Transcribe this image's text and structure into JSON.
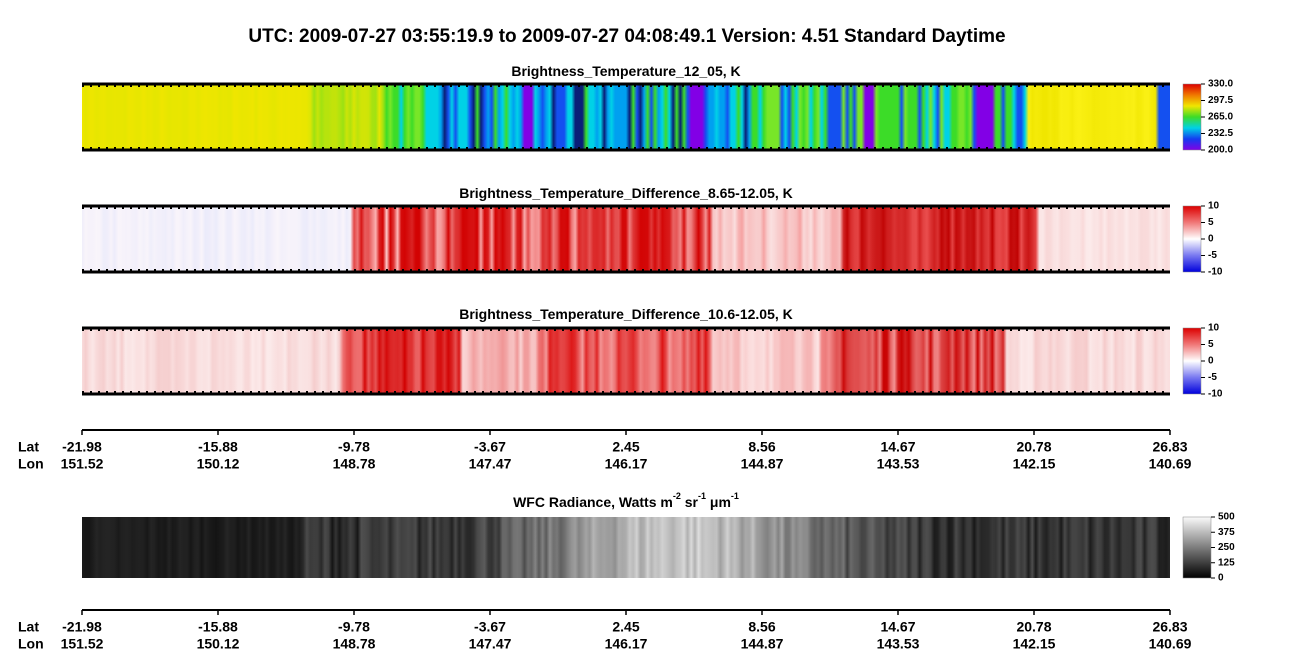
{
  "header": {
    "title": "UTC:  2009-07-27   03:55:19.9  to  2009-07-27   04:08:49.1    Version: 4.51  Standard Daytime"
  },
  "panels": [
    {
      "title": [
        "Brightness_Temperature_12_05, K"
      ],
      "colorbar": [
        "330.0",
        "297.5",
        "265.0",
        "232.5",
        "200.0"
      ]
    },
    {
      "title": [
        "Brightness_Temperature_Difference_8.65-12.05, K"
      ],
      "colorbar": [
        "10",
        "5",
        "0",
        "-5",
        "-10"
      ]
    },
    {
      "title": [
        "Brightness_Temperature_Difference_10.6-12.05, K"
      ],
      "colorbar": [
        "10",
        "5",
        "0",
        "-5",
        "-10"
      ]
    },
    {
      "title": [
        "WFC Radiance, Watts m",
        "-2",
        " sr",
        "-1",
        " μm",
        "-1"
      ],
      "colorbar": [
        "500",
        "375",
        "250",
        "125",
        "0"
      ]
    }
  ],
  "axes": [
    {
      "lat_label": "Lat",
      "lon_label": "Lon",
      "lat": [
        "-21.98",
        "-15.88",
        "-9.78",
        "-3.67",
        "2.45",
        "8.56",
        "14.67",
        "20.78",
        "26.83"
      ],
      "lon": [
        "151.52",
        "150.12",
        "148.78",
        "147.47",
        "146.17",
        "144.87",
        "143.53",
        "142.15",
        "140.69"
      ]
    },
    {
      "lat_label": "Lat",
      "lon_label": "Lon",
      "lat": [
        "-21.98",
        "-15.88",
        "-9.78",
        "-3.67",
        "2.45",
        "8.56",
        "14.67",
        "20.78",
        "26.83"
      ],
      "lon": [
        "151.52",
        "150.12",
        "148.78",
        "147.47",
        "146.17",
        "144.87",
        "143.53",
        "142.15",
        "140.69"
      ]
    }
  ]
}
